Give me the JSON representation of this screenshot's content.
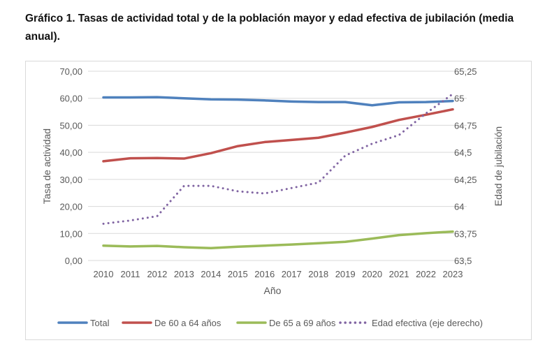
{
  "title": "Gráfico 1. Tasas de actividad total y de la población mayor y edad efectiva de jubilación (media anual).",
  "chart_data": {
    "type": "line",
    "title": "",
    "xlabel": "Año",
    "ylabel": "Tasa de actividad",
    "y2label": "Edad de jubilación",
    "ylim": [
      0,
      70
    ],
    "y2lim": [
      63.5,
      65.25
    ],
    "yticks": [
      "0,00",
      "10,00",
      "20,00",
      "30,00",
      "40,00",
      "50,00",
      "60,00",
      "70,00"
    ],
    "y2ticks": [
      "63,5",
      "63,75",
      "64",
      "64,25",
      "64,5",
      "64,75",
      "65",
      "65,25"
    ],
    "categories": [
      "2010",
      "2011",
      "2012",
      "2013",
      "2014",
      "2015",
      "2016",
      "2017",
      "2018",
      "2019",
      "2020",
      "2021",
      "2022",
      "2023"
    ],
    "grid": true,
    "legend_position": "bottom",
    "series": [
      {
        "name": "Total",
        "axis": "left",
        "color": "#4f81bd",
        "style": "solid",
        "values": [
          60.3,
          60.3,
          60.4,
          60.0,
          59.6,
          59.5,
          59.2,
          58.8,
          58.6,
          58.6,
          57.4,
          58.5,
          58.6,
          59.0
        ]
      },
      {
        "name": "De 60 a 64 años",
        "axis": "left",
        "color": "#c0504d",
        "style": "solid",
        "values": [
          36.7,
          37.8,
          37.9,
          37.7,
          39.7,
          42.3,
          43.8,
          44.6,
          45.4,
          47.3,
          49.4,
          52.0,
          53.9,
          55.9
        ]
      },
      {
        "name": "De 65 a 69 años",
        "axis": "left",
        "color": "#9bbb59",
        "style": "solid",
        "values": [
          5.5,
          5.2,
          5.4,
          4.9,
          4.6,
          5.1,
          5.5,
          5.9,
          6.4,
          6.9,
          8.1,
          9.4,
          10.1,
          10.7
        ]
      },
      {
        "name": "Edad efectiva (eje derecho)",
        "axis": "right",
        "color": "#8064a2",
        "style": "dotted",
        "values": [
          63.84,
          63.87,
          63.91,
          64.19,
          64.19,
          64.14,
          64.12,
          64.17,
          64.22,
          64.47,
          64.58,
          64.66,
          64.86,
          65.04
        ]
      }
    ]
  }
}
